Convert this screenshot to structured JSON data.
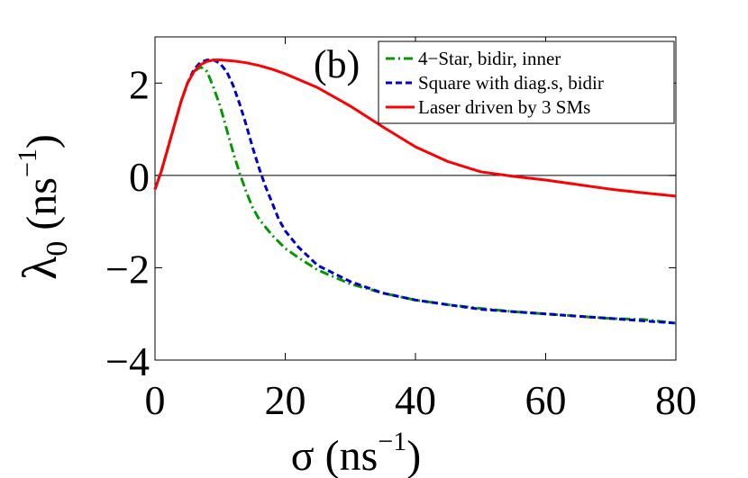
{
  "chart_data": {
    "type": "line",
    "panel_label": "(b)",
    "xlabel": {
      "symbol": "σ",
      "unit_base": " (ns",
      "unit_exp": "−1",
      "unit_close": ")"
    },
    "ylabel": {
      "symbol": "λ",
      "subscript": "0",
      "unit_base": " (ns",
      "unit_exp": "−1",
      "unit_close": ")"
    },
    "xlim": [
      0,
      80
    ],
    "ylim": [
      -4,
      3
    ],
    "xticks": [
      0,
      20,
      40,
      60,
      80
    ],
    "yticks": [
      -4,
      -2,
      0,
      2
    ],
    "xtick_labels": [
      "0",
      "20",
      "40",
      "60",
      "80"
    ],
    "ytick_labels": [
      "−4",
      "−2",
      "0",
      "2"
    ],
    "zero_line": true,
    "grid": false,
    "legend_position": "top-right",
    "colors": {
      "series1": "#009900",
      "series2": "#0000cc",
      "series3": "#ff0000",
      "axis": "#000000"
    },
    "series": [
      {
        "name": "4−Star, bidir, inner",
        "style": "dash-dot",
        "x": [
          0,
          1,
          2,
          3,
          4,
          5,
          6,
          7,
          8,
          9,
          10,
          11,
          12,
          13,
          14,
          15,
          16,
          18,
          20,
          22,
          25,
          30,
          35,
          40,
          45,
          50,
          55,
          60,
          65,
          70,
          75,
          80
        ],
        "y": [
          -0.3,
          0.1,
          0.6,
          1.1,
          1.6,
          2.0,
          2.25,
          2.35,
          2.25,
          1.9,
          1.5,
          1.0,
          0.5,
          0.05,
          -0.35,
          -0.7,
          -0.95,
          -1.3,
          -1.58,
          -1.78,
          -2.05,
          -2.35,
          -2.55,
          -2.7,
          -2.8,
          -2.88,
          -2.95,
          -3.0,
          -3.05,
          -3.1,
          -3.12,
          -3.2
        ]
      },
      {
        "name": "Square with diag.s, bidir",
        "style": "dashed",
        "x": [
          0,
          1,
          2,
          3,
          4,
          5,
          6,
          7,
          8,
          9,
          10,
          11,
          12,
          13,
          14,
          15,
          16,
          17,
          18,
          19,
          20,
          22,
          25,
          30,
          35,
          40,
          45,
          50,
          55,
          60,
          65,
          70,
          75,
          80
        ],
        "y": [
          -0.3,
          0.1,
          0.6,
          1.1,
          1.6,
          2.0,
          2.3,
          2.45,
          2.5,
          2.5,
          2.42,
          2.25,
          1.95,
          1.55,
          1.1,
          0.6,
          0.15,
          -0.25,
          -0.6,
          -0.95,
          -1.2,
          -1.55,
          -1.95,
          -2.3,
          -2.55,
          -2.7,
          -2.8,
          -2.9,
          -2.95,
          -3.0,
          -3.05,
          -3.1,
          -3.15,
          -3.2
        ]
      },
      {
        "name": "Laser driven by 3 SMs",
        "style": "solid",
        "x": [
          0,
          1,
          2,
          3,
          4,
          5,
          6,
          7,
          8,
          9,
          10,
          12,
          14,
          16,
          18,
          20,
          25,
          30,
          35,
          40,
          45,
          50,
          55,
          60,
          65,
          70,
          75,
          80
        ],
        "y": [
          -0.3,
          0.1,
          0.6,
          1.1,
          1.6,
          2.0,
          2.25,
          2.4,
          2.47,
          2.5,
          2.5,
          2.48,
          2.44,
          2.38,
          2.3,
          2.2,
          1.9,
          1.5,
          1.05,
          0.62,
          0.3,
          0.08,
          -0.02,
          -0.1,
          -0.2,
          -0.3,
          -0.38,
          -0.45
        ]
      }
    ]
  }
}
